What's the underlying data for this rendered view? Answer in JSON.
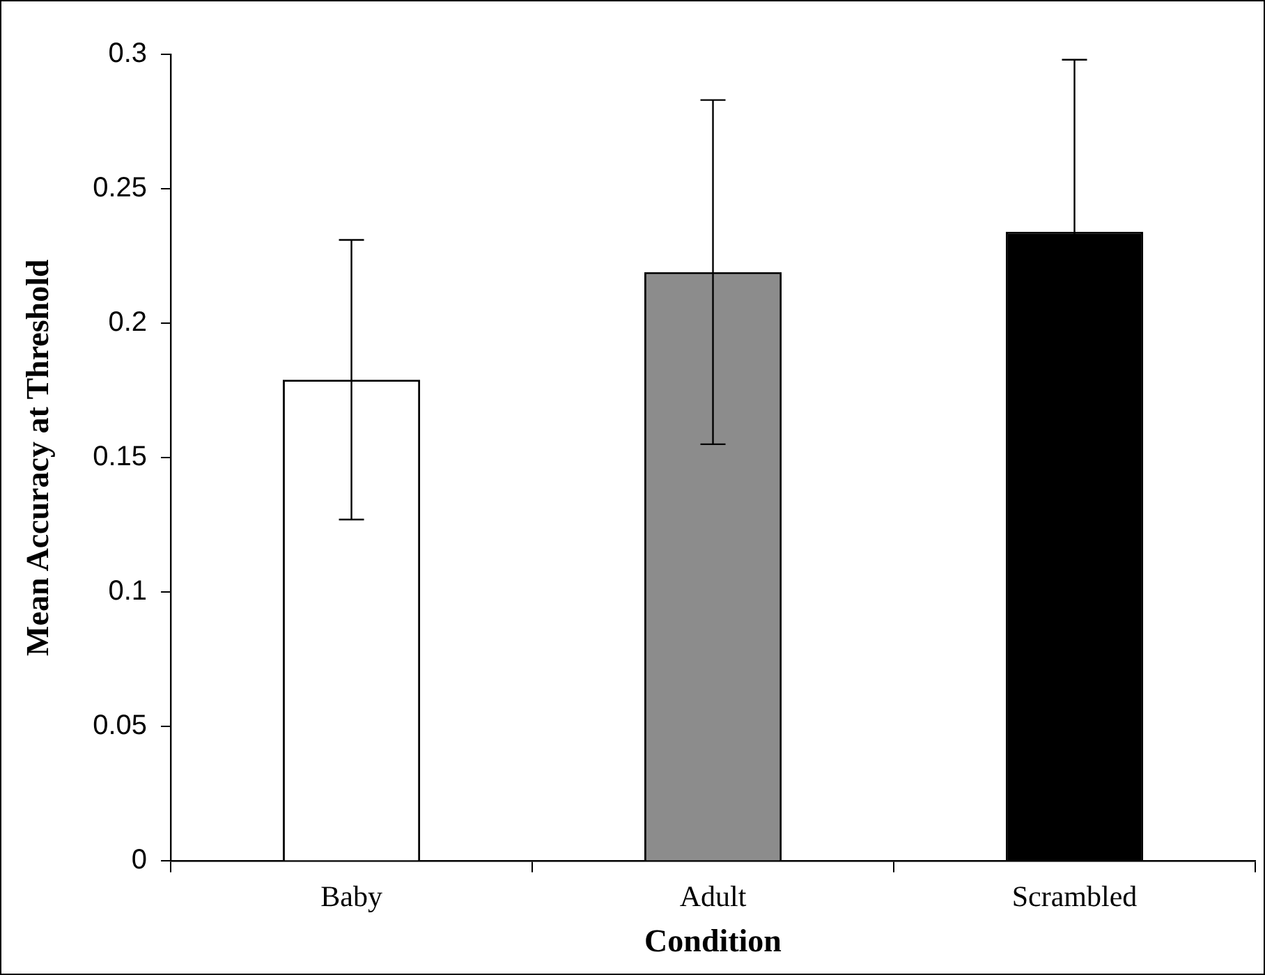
{
  "chart_data": {
    "type": "bar",
    "xlabel": "Condition",
    "ylabel": "Mean Accuracy at Threshold",
    "categories": [
      "Baby",
      "Adult",
      "Scrambled"
    ],
    "values": [
      0.179,
      0.219,
      0.234
    ],
    "colors": [
      "#ffffff",
      "#8c8c8c",
      "#000000"
    ],
    "errors": [
      0.052,
      0.064,
      0.064
    ],
    "ylim": [
      0,
      0.3
    ],
    "yticks": [
      0,
      0.05,
      0.1,
      0.15,
      0.2,
      0.25,
      0.3
    ],
    "grid": false,
    "legend": false
  }
}
